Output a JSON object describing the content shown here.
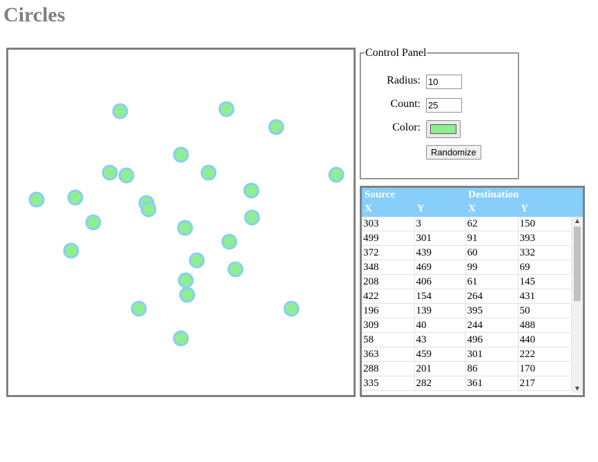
{
  "page": {
    "title": "Circles"
  },
  "control_panel": {
    "legend": "Control Panel",
    "radius_label": "Radius:",
    "radius_value": "10",
    "count_label": "Count:",
    "count_value": "25",
    "color_label": "Color:",
    "color_value": "#90ee90",
    "randomize_label": "Randomize"
  },
  "circles": {
    "count": 25,
    "radius": 10,
    "fill_color": "#90ee90",
    "stroke_color": "#87cefa",
    "positions": [
      [
        162,
        89
      ],
      [
        316,
        86
      ],
      [
        388,
        112
      ],
      [
        250,
        152
      ],
      [
        147,
        178
      ],
      [
        171,
        182
      ],
      [
        290,
        178
      ],
      [
        475,
        181
      ],
      [
        352,
        204
      ],
      [
        41,
        217
      ],
      [
        97,
        214
      ],
      [
        200,
        222
      ],
      [
        203,
        231
      ],
      [
        353,
        243
      ],
      [
        123,
        250
      ],
      [
        256,
        258
      ],
      [
        320,
        278
      ],
      [
        91,
        291
      ],
      [
        273,
        305
      ],
      [
        329,
        318
      ],
      [
        257,
        334
      ],
      [
        259,
        355
      ],
      [
        189,
        375
      ],
      [
        250,
        418
      ],
      [
        410,
        375
      ]
    ]
  },
  "table": {
    "group_headers": [
      "Source",
      "Destination"
    ],
    "column_headers": [
      "X",
      "Y",
      "X",
      "Y"
    ],
    "rows": [
      [
        "303",
        "3",
        "62",
        "150"
      ],
      [
        "499",
        "301",
        "91",
        "393"
      ],
      [
        "372",
        "439",
        "60",
        "332"
      ],
      [
        "348",
        "469",
        "99",
        "69"
      ],
      [
        "208",
        "406",
        "61",
        "145"
      ],
      [
        "422",
        "154",
        "264",
        "431"
      ],
      [
        "196",
        "139",
        "395",
        "50"
      ],
      [
        "309",
        "40",
        "244",
        "488"
      ],
      [
        "58",
        "43",
        "496",
        "440"
      ],
      [
        "363",
        "459",
        "301",
        "222"
      ],
      [
        "288",
        "201",
        "86",
        "170"
      ],
      [
        "335",
        "282",
        "361",
        "217"
      ]
    ]
  },
  "scrollbar": {
    "up_icon": "triangle-up-icon",
    "down_icon": "triangle-down-icon"
  }
}
